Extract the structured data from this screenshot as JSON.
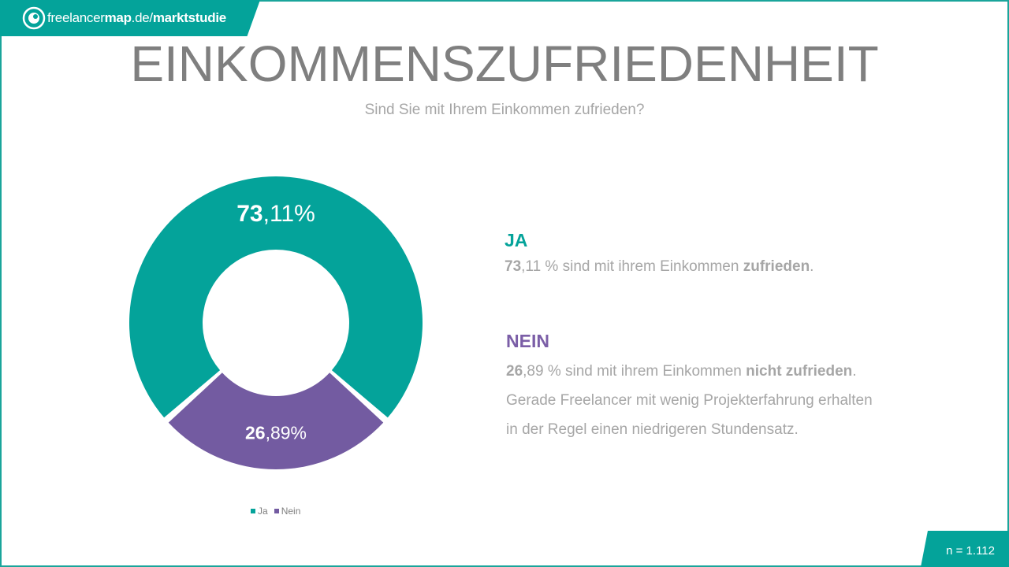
{
  "brand": {
    "name_regular": "freelancer",
    "name_bold": "map",
    "domain": ".de/",
    "section": "marktstudie"
  },
  "title": "EINKOMMENSZUFRIEDENHEIT",
  "subtitle": "Sind Sie mit Ihrem Einkommen  zufrieden?",
  "colors": {
    "teal": "#04a39a",
    "purple": "#735ba1"
  },
  "chart_data": {
    "type": "pie",
    "donut": true,
    "title": "",
    "categories": [
      "Ja",
      "Nein"
    ],
    "values": [
      73.11,
      26.89
    ],
    "data_labels": [
      {
        "bold": "73",
        "rest": ",11%"
      },
      {
        "bold": "26",
        "rest": ",89%"
      }
    ],
    "legend": {
      "position": "bottom",
      "entries": [
        "Ja",
        "Nein"
      ]
    }
  },
  "ja": {
    "heading": "JA",
    "pct_bold": "73",
    "pct_rest": ",11 % sind mit ihrem Einkommen ",
    "emph": "zufrieden",
    "end": "."
  },
  "nein": {
    "heading": "NEIN",
    "pct_bold": "26",
    "pct_rest": ",89 % sind mit ihrem Einkommen ",
    "emph": "nicht zufrieden",
    "end": ".",
    "line2": "Gerade Freelancer mit wenig Projekterfahrung  erhalten",
    "line3": "in der Regel einen niedrigeren Stundensatz."
  },
  "sample": "n = 1.112"
}
